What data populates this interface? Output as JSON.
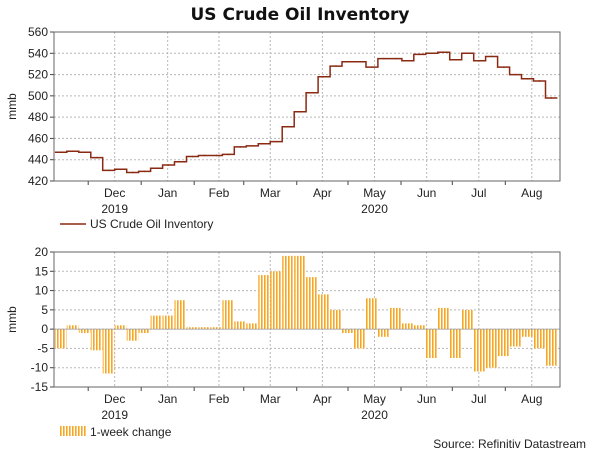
{
  "title": "US Crude Oil Inventory",
  "source": "Source: Refinitiv Datastream",
  "colors": {
    "line": "#8b2a12",
    "bar": "#f5a623",
    "grid": "#b8b8b8"
  },
  "chart_data": [
    {
      "type": "line",
      "ylabel": "mmb",
      "ylim": [
        420,
        560
      ],
      "yticks": [
        420,
        440,
        460,
        480,
        500,
        520,
        540,
        560
      ],
      "month_labels": [
        "Dec",
        "Jan",
        "Feb",
        "Mar",
        "Apr",
        "May",
        "Jun",
        "Jul",
        "Aug"
      ],
      "year_labels": [
        "2019",
        "2020"
      ],
      "grid": true,
      "legend": "bottom-left",
      "series": [
        {
          "name": "US Crude Oil Inventory",
          "x": [
            "2019-11-15",
            "2019-11-22",
            "2019-11-29",
            "2019-12-06",
            "2019-12-13",
            "2019-12-20",
            "2019-12-27",
            "2020-01-03",
            "2020-01-10",
            "2020-01-17",
            "2020-01-24",
            "2020-01-31",
            "2020-02-07",
            "2020-02-14",
            "2020-02-21",
            "2020-02-28",
            "2020-03-06",
            "2020-03-13",
            "2020-03-20",
            "2020-03-27",
            "2020-04-03",
            "2020-04-10",
            "2020-04-17",
            "2020-04-24",
            "2020-05-01",
            "2020-05-08",
            "2020-05-15",
            "2020-05-22",
            "2020-05-29",
            "2020-06-05",
            "2020-06-12",
            "2020-06-19",
            "2020-06-26",
            "2020-07-03",
            "2020-07-10",
            "2020-07-17",
            "2020-07-24",
            "2020-07-31",
            "2020-08-07",
            "2020-08-14",
            "2020-08-21",
            "2020-08-28"
          ],
          "values": [
            447,
            448,
            447,
            442,
            430,
            431,
            428,
            429,
            432,
            435,
            438,
            443,
            444,
            444,
            445,
            452,
            453,
            455,
            457,
            471,
            485,
            503,
            518,
            528,
            532,
            532,
            527,
            535,
            535,
            533,
            539,
            540,
            541,
            534,
            540,
            533,
            537,
            527,
            520,
            516,
            514,
            498
          ]
        }
      ]
    },
    {
      "type": "bar",
      "ylabel": "mmb",
      "ylim": [
        -15,
        20
      ],
      "yticks": [
        -15,
        -10,
        -5,
        0,
        5,
        10,
        15,
        20
      ],
      "month_labels": [
        "Dec",
        "Jan",
        "Feb",
        "Mar",
        "Apr",
        "May",
        "Jun",
        "Jul",
        "Aug"
      ],
      "year_labels": [
        "2019",
        "2020"
      ],
      "grid": true,
      "legend": "bottom-left",
      "series": [
        {
          "name": "1-week change",
          "x": [
            "2019-11-15",
            "2019-11-22",
            "2019-11-29",
            "2019-12-06",
            "2019-12-13",
            "2019-12-20",
            "2019-12-27",
            "2020-01-03",
            "2020-01-10",
            "2020-01-17",
            "2020-01-24",
            "2020-01-31",
            "2020-02-07",
            "2020-02-14",
            "2020-02-21",
            "2020-02-28",
            "2020-03-06",
            "2020-03-13",
            "2020-03-20",
            "2020-03-27",
            "2020-04-03",
            "2020-04-10",
            "2020-04-17",
            "2020-04-24",
            "2020-05-01",
            "2020-05-08",
            "2020-05-15",
            "2020-05-22",
            "2020-05-29",
            "2020-06-05",
            "2020-06-12",
            "2020-06-19",
            "2020-06-26",
            "2020-07-03",
            "2020-07-10",
            "2020-07-17",
            "2020-07-24",
            "2020-07-31",
            "2020-08-07",
            "2020-08-14",
            "2020-08-21",
            "2020-08-28"
          ],
          "values": [
            -5,
            1,
            -1,
            -5.5,
            -11.5,
            1,
            -3,
            -1,
            3.5,
            3.5,
            7.5,
            0.5,
            0.5,
            0.5,
            7.5,
            2,
            1.5,
            14,
            15,
            19,
            19,
            13.5,
            9,
            5,
            -1,
            -5,
            8,
            -2,
            5.5,
            1.5,
            1,
            -7.5,
            5.5,
            -7.5,
            5,
            -11,
            -10,
            -7,
            -4.5,
            -2,
            -5,
            -9.5
          ]
        }
      ]
    }
  ]
}
